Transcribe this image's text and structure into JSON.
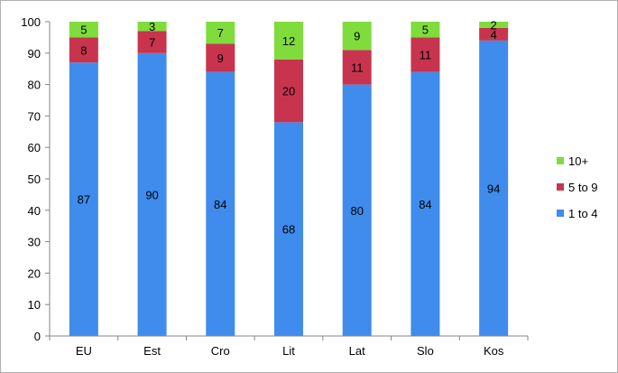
{
  "chart_data": {
    "type": "bar",
    "stacked": true,
    "categories": [
      "EU",
      "Est",
      "Cro",
      "Lit",
      "Lat",
      "Slo",
      "Kos"
    ],
    "series": [
      {
        "name": "1 to 4",
        "color": "#3f8cec",
        "values": [
          87,
          90,
          84,
          68,
          80,
          84,
          94
        ]
      },
      {
        "name": "5 to 9",
        "color": "#c8344e",
        "values": [
          8,
          7,
          9,
          20,
          11,
          11,
          4
        ]
      },
      {
        "name": "10+",
        "color": "#7fdc3c",
        "values": [
          5,
          3,
          7,
          12,
          9,
          5,
          2
        ]
      }
    ],
    "ylim": [
      0,
      100
    ],
    "yticks": [
      0,
      10,
      20,
      30,
      40,
      50,
      60,
      70,
      80,
      90,
      100
    ],
    "title": "",
    "xlabel": "",
    "ylabel": "",
    "grid": false,
    "legend": "right"
  }
}
